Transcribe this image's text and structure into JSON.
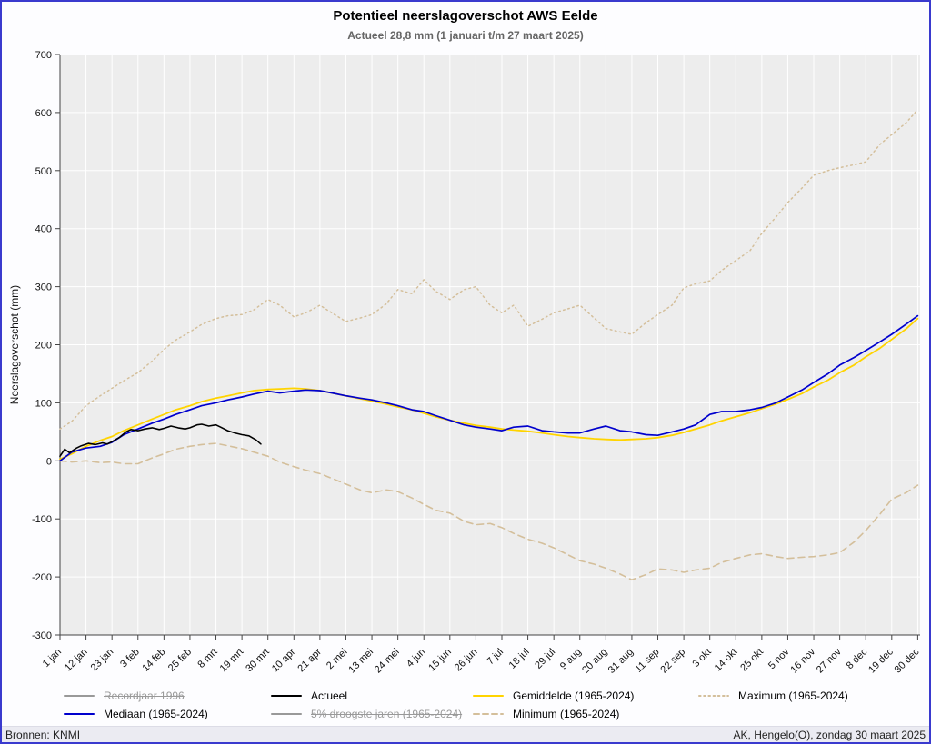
{
  "title": "Potentieel neerslagoverschot AWS Eelde",
  "subtitle": "Actueel 28,8 mm (1 januari t/m 27 maart 2025)",
  "footer": {
    "left": "Bronnen: KNMI",
    "right": "AK, Hengelo(O), zondag 30 maart 2025"
  },
  "colors": {
    "frame": "#3a3ace",
    "plot_bg": "#ededed",
    "grid": "#ffffff",
    "axis": "#444444",
    "actueel": "#000000",
    "mediaan": "#0000cd",
    "gemiddelde": "#ffd400",
    "maxmin": "#d4bf9b",
    "disabled": "#999999",
    "subtitle_text": "#666666"
  },
  "chart_data": {
    "type": "line",
    "title": "Potentieel neerslagoverschot AWS Eelde",
    "subtitle": "Actueel 28,8 mm (1 januari t/m 27 maart 2025)",
    "xlabel": "",
    "ylabel": "Neerslagoverschot (mm)",
    "ylim": [
      -300,
      700
    ],
    "ytick_step": 100,
    "x_domain": [
      1,
      365
    ],
    "grid": true,
    "legend_position": "bottom",
    "xtick_days": [
      1,
      12,
      23,
      34,
      45,
      56,
      67,
      78,
      89,
      100,
      111,
      122,
      133,
      144,
      155,
      166,
      177,
      188,
      199,
      210,
      221,
      232,
      243,
      254,
      265,
      276,
      287,
      298,
      309,
      320,
      331,
      342,
      353,
      364
    ],
    "xtick_labels": [
      "1 jan",
      "12 jan",
      "23 jan",
      "3 feb",
      "14 feb",
      "25 feb",
      "8 mrt",
      "19 mrt",
      "30 mrt",
      "10 apr",
      "21 apr",
      "2 mei",
      "13 mei",
      "24 mei",
      "4 jun",
      "15 jun",
      "26 jun",
      "7 jul",
      "18 jul",
      "29 jul",
      "9 aug",
      "20 aug",
      "31 aug",
      "11 sep",
      "22 sep",
      "3 okt",
      "14 okt",
      "25 okt",
      "5 nov",
      "16 nov",
      "27 nov",
      "8 dec",
      "19 dec",
      "30 dec"
    ],
    "series": [
      {
        "key": "minimum",
        "name": "Minimum (1965-2024)",
        "style": "dashed",
        "color_key": "maxmin",
        "width": 1.6,
        "x": [
          1,
          6,
          12,
          18,
          23,
          28,
          34,
          40,
          45,
          50,
          56,
          61,
          67,
          72,
          78,
          83,
          89,
          94,
          100,
          105,
          111,
          116,
          122,
          128,
          133,
          139,
          144,
          150,
          155,
          160,
          166,
          172,
          177,
          183,
          188,
          193,
          199,
          205,
          210,
          216,
          221,
          227,
          232,
          238,
          243,
          249,
          254,
          260,
          265,
          270,
          276,
          281,
          287,
          293,
          298,
          304,
          309,
          315,
          320,
          326,
          331,
          337,
          342,
          348,
          353,
          359,
          364
        ],
        "y": [
          0,
          -2,
          0,
          -3,
          -2,
          -5,
          -5,
          5,
          12,
          20,
          25,
          28,
          30,
          26,
          21,
          15,
          8,
          -2,
          -10,
          -16,
          -22,
          -30,
          -40,
          -50,
          -55,
          -50,
          -53,
          -64,
          -75,
          -85,
          -90,
          -104,
          -110,
          -108,
          -115,
          -125,
          -135,
          -142,
          -150,
          -162,
          -172,
          -178,
          -185,
          -195,
          -205,
          -196,
          -186,
          -188,
          -192,
          -188,
          -185,
          -175,
          -168,
          -162,
          -160,
          -165,
          -168,
          -166,
          -165,
          -162,
          -158,
          -140,
          -120,
          -92,
          -66,
          -55,
          -42
        ]
      },
      {
        "key": "maximum",
        "name": "Maximum (1965-2024)",
        "style": "dotted",
        "color_key": "maxmin",
        "width": 1.5,
        "x": [
          1,
          6,
          12,
          18,
          23,
          28,
          34,
          40,
          45,
          50,
          56,
          61,
          67,
          72,
          78,
          83,
          89,
          94,
          100,
          105,
          111,
          116,
          122,
          128,
          133,
          139,
          144,
          150,
          155,
          160,
          166,
          172,
          177,
          183,
          188,
          193,
          199,
          205,
          210,
          216,
          221,
          227,
          232,
          238,
          243,
          249,
          254,
          260,
          265,
          270,
          276,
          281,
          287,
          293,
          298,
          304,
          309,
          315,
          320,
          326,
          331,
          337,
          342,
          348,
          353,
          359,
          364
        ],
        "y": [
          55,
          68,
          95,
          112,
          125,
          138,
          152,
          172,
          192,
          208,
          222,
          235,
          245,
          250,
          252,
          260,
          278,
          268,
          248,
          255,
          268,
          255,
          240,
          246,
          252,
          270,
          295,
          288,
          312,
          292,
          278,
          295,
          300,
          268,
          255,
          268,
          232,
          244,
          255,
          262,
          268,
          246,
          228,
          222,
          218,
          238,
          252,
          268,
          298,
          305,
          310,
          328,
          345,
          362,
          392,
          420,
          445,
          470,
          492,
          500,
          505,
          510,
          515,
          545,
          562,
          582,
          605
        ]
      },
      {
        "key": "gemiddelde",
        "name": "Gemiddelde (1965-2024)",
        "style": "solid",
        "color_key": "gemiddelde",
        "width": 1.8,
        "x": [
          1,
          6,
          12,
          18,
          23,
          28,
          34,
          40,
          45,
          50,
          56,
          61,
          67,
          72,
          78,
          83,
          89,
          94,
          100,
          105,
          111,
          116,
          122,
          128,
          133,
          139,
          144,
          150,
          155,
          160,
          166,
          172,
          177,
          183,
          188,
          193,
          199,
          205,
          210,
          216,
          221,
          227,
          232,
          238,
          243,
          249,
          254,
          260,
          265,
          270,
          276,
          281,
          287,
          293,
          298,
          304,
          309,
          315,
          320,
          326,
          331,
          337,
          342,
          348,
          353,
          359,
          364
        ],
        "y": [
          3,
          12,
          25,
          35,
          42,
          52,
          62,
          72,
          80,
          88,
          95,
          102,
          108,
          112,
          117,
          121,
          123,
          124,
          125,
          124,
          121,
          117,
          112,
          107,
          103,
          98,
          93,
          88,
          82,
          76,
          70,
          65,
          61,
          58,
          55,
          53,
          51,
          48,
          45,
          42,
          40,
          38,
          37,
          36,
          37,
          38,
          40,
          44,
          49,
          55,
          62,
          69,
          76,
          83,
          90,
          98,
          106,
          116,
          127,
          139,
          152,
          165,
          179,
          194,
          209,
          227,
          245
        ]
      },
      {
        "key": "mediaan",
        "name": "Mediaan (1965-2024)",
        "style": "solid",
        "color_key": "mediaan",
        "width": 1.7,
        "x": [
          1,
          6,
          12,
          18,
          23,
          28,
          34,
          40,
          45,
          50,
          56,
          61,
          67,
          72,
          78,
          83,
          89,
          94,
          100,
          105,
          111,
          116,
          122,
          128,
          133,
          139,
          144,
          150,
          155,
          160,
          166,
          172,
          177,
          183,
          188,
          193,
          199,
          205,
          210,
          216,
          221,
          227,
          232,
          238,
          243,
          249,
          254,
          260,
          265,
          270,
          276,
          281,
          287,
          293,
          298,
          304,
          309,
          315,
          320,
          326,
          331,
          337,
          342,
          348,
          353,
          359,
          364
        ],
        "y": [
          0,
          15,
          22,
          25,
          32,
          45,
          55,
          65,
          72,
          80,
          88,
          95,
          100,
          105,
          110,
          115,
          120,
          117,
          120,
          122,
          121,
          117,
          112,
          108,
          105,
          100,
          95,
          88,
          85,
          78,
          70,
          62,
          58,
          55,
          52,
          58,
          60,
          52,
          50,
          48,
          48,
          55,
          60,
          52,
          50,
          45,
          44,
          50,
          55,
          62,
          80,
          85,
          85,
          88,
          92,
          100,
          110,
          122,
          135,
          150,
          165,
          178,
          190,
          205,
          218,
          235,
          250
        ]
      },
      {
        "key": "actueel",
        "name": "Actueel",
        "style": "solid",
        "color_key": "actueel",
        "width": 1.6,
        "x": [
          1,
          3,
          5,
          8,
          10,
          13,
          16,
          19,
          21,
          23,
          26,
          29,
          31,
          34,
          37,
          40,
          43,
          45,
          48,
          51,
          54,
          56,
          59,
          61,
          64,
          67,
          69,
          72,
          75,
          78,
          81,
          84,
          86
        ],
        "y": [
          8,
          20,
          14,
          22,
          26,
          30,
          28,
          31,
          29,
          33,
          40,
          50,
          54,
          52,
          55,
          57,
          54,
          56,
          60,
          57,
          55,
          57,
          62,
          63,
          60,
          62,
          58,
          52,
          48,
          45,
          43,
          36,
          29
        ]
      }
    ]
  },
  "legend": {
    "rows": [
      [
        {
          "key": "recordjaar-1996",
          "label": "Recordjaar 1996",
          "swatch": "solid",
          "color_key": "disabled",
          "disabled": true
        },
        {
          "key": "actueel",
          "label": "Actueel",
          "swatch": "solid",
          "color_key": "actueel",
          "disabled": false
        },
        {
          "key": "gemiddelde",
          "label": "Gemiddelde (1965-2024)",
          "swatch": "solid",
          "color_key": "gemiddelde",
          "disabled": false
        },
        {
          "key": "maximum",
          "label": "Maximum (1965-2024)",
          "swatch": "dotted",
          "color_key": "maxmin",
          "disabled": false
        }
      ],
      [
        {
          "key": "mediaan",
          "label": "Mediaan (1965-2024)",
          "swatch": "solid",
          "color_key": "mediaan",
          "disabled": false
        },
        {
          "key": "droogste-5pct",
          "label": "5% droogste jaren (1965-2024)",
          "swatch": "solid",
          "color_key": "disabled",
          "disabled": true
        },
        {
          "key": "minimum",
          "label": "Minimum (1965-2024)",
          "swatch": "dashed",
          "color_key": "maxmin",
          "disabled": false
        }
      ]
    ]
  }
}
